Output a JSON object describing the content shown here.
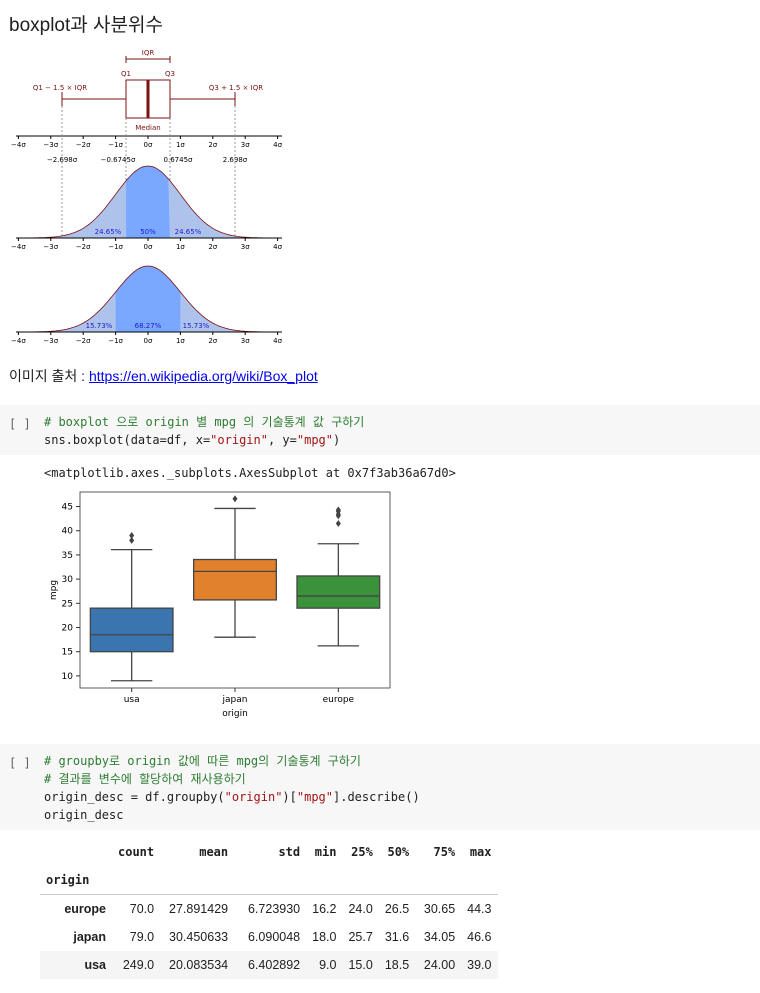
{
  "heading": "boxplot과 사분위수",
  "figure": {
    "iqr": "IQR",
    "q1": "Q1",
    "q3": "Q3",
    "left_whisker": "Q1 − 1.5 × IQR",
    "right_whisker": "Q3 + 1.5 × IQR",
    "median": "Median",
    "sigma_ticks": [
      "−4σ",
      "−3σ",
      "−2σ",
      "−1σ",
      "0σ",
      "1σ",
      "2σ",
      "3σ",
      "4σ"
    ],
    "quartile_values": [
      "−2.698σ",
      "−0.6745σ",
      "0.6745σ",
      "2.698σ"
    ],
    "dist1_labels": [
      "24.65%",
      "50%",
      "24.65%"
    ],
    "dist2_labels": [
      "15.73%",
      "68.27%",
      "15.73%"
    ]
  },
  "source": {
    "label": "이미지 출처 : ",
    "link": "https://en.wikipedia.org/wiki/Box_plot"
  },
  "cell1": {
    "prompt": "[ ]",
    "comment": "# boxplot 으로 origin 별 mpg 의 기술통계 값 구하기",
    "code_a": "sns.boxplot(data=df, x=",
    "str_a": "\"origin\"",
    "code_b": ", y=",
    "str_b": "\"mpg\"",
    "code_c": ")",
    "output": "<matplotlib.axes._subplots.AxesSubplot at 0x7f3ab36a67d0>"
  },
  "chart_data": {
    "type": "box",
    "categories": [
      "usa",
      "japan",
      "europe"
    ],
    "xlabel": "origin",
    "ylabel": "mpg",
    "ylim": [
      7.5,
      48
    ],
    "yticks": [
      10,
      15,
      20,
      25,
      30,
      35,
      40,
      45
    ],
    "colors": [
      "#3a75af",
      "#e1812c",
      "#3a923a"
    ],
    "boxes": [
      {
        "name": "usa",
        "q1": 15.0,
        "median": 18.5,
        "q3": 24.0,
        "whislo": 9.0,
        "whishi": 36.1,
        "fliers": [
          38.0,
          39.0
        ]
      },
      {
        "name": "japan",
        "q1": 25.7,
        "median": 31.6,
        "q3": 34.05,
        "whislo": 18.0,
        "whishi": 44.6,
        "fliers": [
          46.6
        ]
      },
      {
        "name": "europe",
        "q1": 24.0,
        "median": 26.5,
        "q3": 30.65,
        "whislo": 16.2,
        "whishi": 37.3,
        "fliers": [
          41.5,
          43.1,
          43.4,
          44.0,
          44.3
        ]
      }
    ]
  },
  "cell2": {
    "prompt": "[ ]",
    "comment1": "# groupby로 origin 값에 따른 mpg의 기술통계 구하기",
    "comment2": "# 결과를 변수에 할당하여 재사용하기",
    "code_a": "origin_desc = df.groupby(",
    "str_a": "\"origin\"",
    "code_b": ")[",
    "str_b": "\"mpg\"",
    "code_c": "].describe()",
    "line3": "origin_desc"
  },
  "table": {
    "columns": [
      "count",
      "mean",
      "std",
      "min",
      "25%",
      "50%",
      "75%",
      "max"
    ],
    "index_name": "origin",
    "rows": [
      {
        "label": "europe",
        "values": [
          "70.0",
          "27.891429",
          "6.723930",
          "16.2",
          "24.0",
          "26.5",
          "30.65",
          "44.3"
        ]
      },
      {
        "label": "japan",
        "values": [
          "79.0",
          "30.450633",
          "6.090048",
          "18.0",
          "25.7",
          "31.6",
          "34.05",
          "46.6"
        ]
      },
      {
        "label": "usa",
        "values": [
          "249.0",
          "20.083534",
          "6.402892",
          "9.0",
          "15.0",
          "18.5",
          "24.00",
          "39.0"
        ]
      }
    ]
  }
}
